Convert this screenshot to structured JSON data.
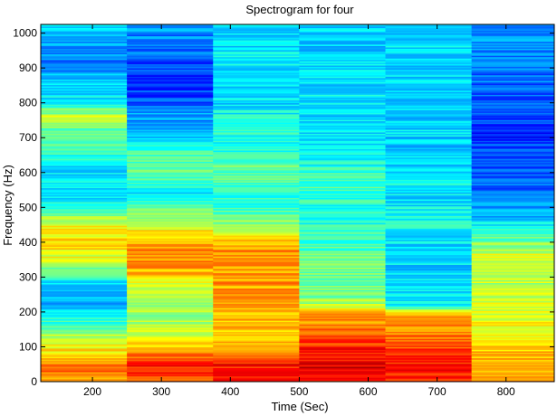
{
  "chart_data": {
    "type": "heatmap",
    "title": "Spectrogram for four",
    "xlabel": "Time (Sec)",
    "ylabel": "Frequency (Hz)",
    "xlim": [
      125,
      870
    ],
    "ylim": [
      0,
      1025
    ],
    "x_ticks": [
      200,
      300,
      400,
      500,
      600,
      700,
      800
    ],
    "y_ticks": [
      0,
      100,
      200,
      300,
      400,
      500,
      600,
      700,
      800,
      900,
      1000
    ],
    "time_columns": [
      {
        "x_start": 125,
        "x_end": 250
      },
      {
        "x_start": 250,
        "x_end": 375
      },
      {
        "x_start": 375,
        "x_end": 500
      },
      {
        "x_start": 500,
        "x_end": 625
      },
      {
        "x_start": 625,
        "x_end": 750
      },
      {
        "x_start": 750,
        "x_end": 870
      }
    ],
    "colormap": [
      "#00008f",
      "#0000ff",
      "#007fff",
      "#00ffff",
      "#7fff7f",
      "#ffff00",
      "#ff7f00",
      "#ff0000",
      "#7f0000"
    ],
    "intensity_profiles": [
      [
        [
          0,
          0.72
        ],
        [
          40,
          0.78
        ],
        [
          80,
          0.66
        ],
        [
          120,
          0.58
        ],
        [
          170,
          0.42
        ],
        [
          220,
          0.32
        ],
        [
          260,
          0.28
        ],
        [
          300,
          0.4
        ],
        [
          340,
          0.58
        ],
        [
          400,
          0.66
        ],
        [
          450,
          0.62
        ],
        [
          480,
          0.5
        ],
        [
          520,
          0.38
        ],
        [
          600,
          0.35
        ],
        [
          660,
          0.42
        ],
        [
          720,
          0.45
        ],
        [
          760,
          0.58
        ],
        [
          800,
          0.38
        ],
        [
          860,
          0.32
        ],
        [
          920,
          0.26
        ],
        [
          980,
          0.3
        ],
        [
          1025,
          0.32
        ]
      ],
      [
        [
          0,
          0.8
        ],
        [
          50,
          0.85
        ],
        [
          100,
          0.68
        ],
        [
          150,
          0.55
        ],
        [
          200,
          0.52
        ],
        [
          260,
          0.58
        ],
        [
          320,
          0.7
        ],
        [
          360,
          0.75
        ],
        [
          400,
          0.72
        ],
        [
          440,
          0.62
        ],
        [
          480,
          0.52
        ],
        [
          540,
          0.35
        ],
        [
          600,
          0.5
        ],
        [
          650,
          0.45
        ],
        [
          700,
          0.32
        ],
        [
          760,
          0.28
        ],
        [
          820,
          0.2
        ],
        [
          880,
          0.18
        ],
        [
          940,
          0.22
        ],
        [
          1025,
          0.28
        ]
      ],
      [
        [
          0,
          0.85
        ],
        [
          50,
          0.86
        ],
        [
          100,
          0.72
        ],
        [
          150,
          0.68
        ],
        [
          200,
          0.7
        ],
        [
          260,
          0.72
        ],
        [
          320,
          0.72
        ],
        [
          380,
          0.74
        ],
        [
          430,
          0.6
        ],
        [
          480,
          0.46
        ],
        [
          520,
          0.4
        ],
        [
          580,
          0.44
        ],
        [
          620,
          0.48
        ],
        [
          680,
          0.38
        ],
        [
          740,
          0.42
        ],
        [
          800,
          0.35
        ],
        [
          880,
          0.36
        ],
        [
          960,
          0.35
        ],
        [
          1025,
          0.33
        ]
      ],
      [
        [
          0,
          0.88
        ],
        [
          50,
          0.9
        ],
        [
          100,
          0.84
        ],
        [
          150,
          0.76
        ],
        [
          190,
          0.72
        ],
        [
          220,
          0.56
        ],
        [
          260,
          0.48
        ],
        [
          300,
          0.5
        ],
        [
          340,
          0.48
        ],
        [
          400,
          0.44
        ],
        [
          460,
          0.4
        ],
        [
          520,
          0.42
        ],
        [
          580,
          0.44
        ],
        [
          640,
          0.38
        ],
        [
          720,
          0.34
        ],
        [
          800,
          0.36
        ],
        [
          880,
          0.34
        ],
        [
          960,
          0.33
        ],
        [
          1025,
          0.34
        ]
      ],
      [
        [
          0,
          0.82
        ],
        [
          50,
          0.86
        ],
        [
          100,
          0.8
        ],
        [
          150,
          0.74
        ],
        [
          190,
          0.7
        ],
        [
          220,
          0.38
        ],
        [
          260,
          0.36
        ],
        [
          320,
          0.34
        ],
        [
          400,
          0.35
        ],
        [
          470,
          0.4
        ],
        [
          520,
          0.35
        ],
        [
          580,
          0.38
        ],
        [
          640,
          0.33
        ],
        [
          720,
          0.34
        ],
        [
          800,
          0.33
        ],
        [
          880,
          0.33
        ],
        [
          960,
          0.34
        ],
        [
          1025,
          0.33
        ]
      ],
      [
        [
          0,
          0.7
        ],
        [
          50,
          0.72
        ],
        [
          100,
          0.66
        ],
        [
          150,
          0.62
        ],
        [
          200,
          0.6
        ],
        [
          240,
          0.58
        ],
        [
          280,
          0.56
        ],
        [
          320,
          0.58
        ],
        [
          360,
          0.6
        ],
        [
          400,
          0.5
        ],
        [
          440,
          0.38
        ],
        [
          480,
          0.3
        ],
        [
          540,
          0.24
        ],
        [
          600,
          0.22
        ],
        [
          660,
          0.2
        ],
        [
          700,
          0.16
        ],
        [
          760,
          0.2
        ],
        [
          820,
          0.22
        ],
        [
          900,
          0.24
        ],
        [
          960,
          0.26
        ],
        [
          1025,
          0.28
        ]
      ]
    ]
  }
}
